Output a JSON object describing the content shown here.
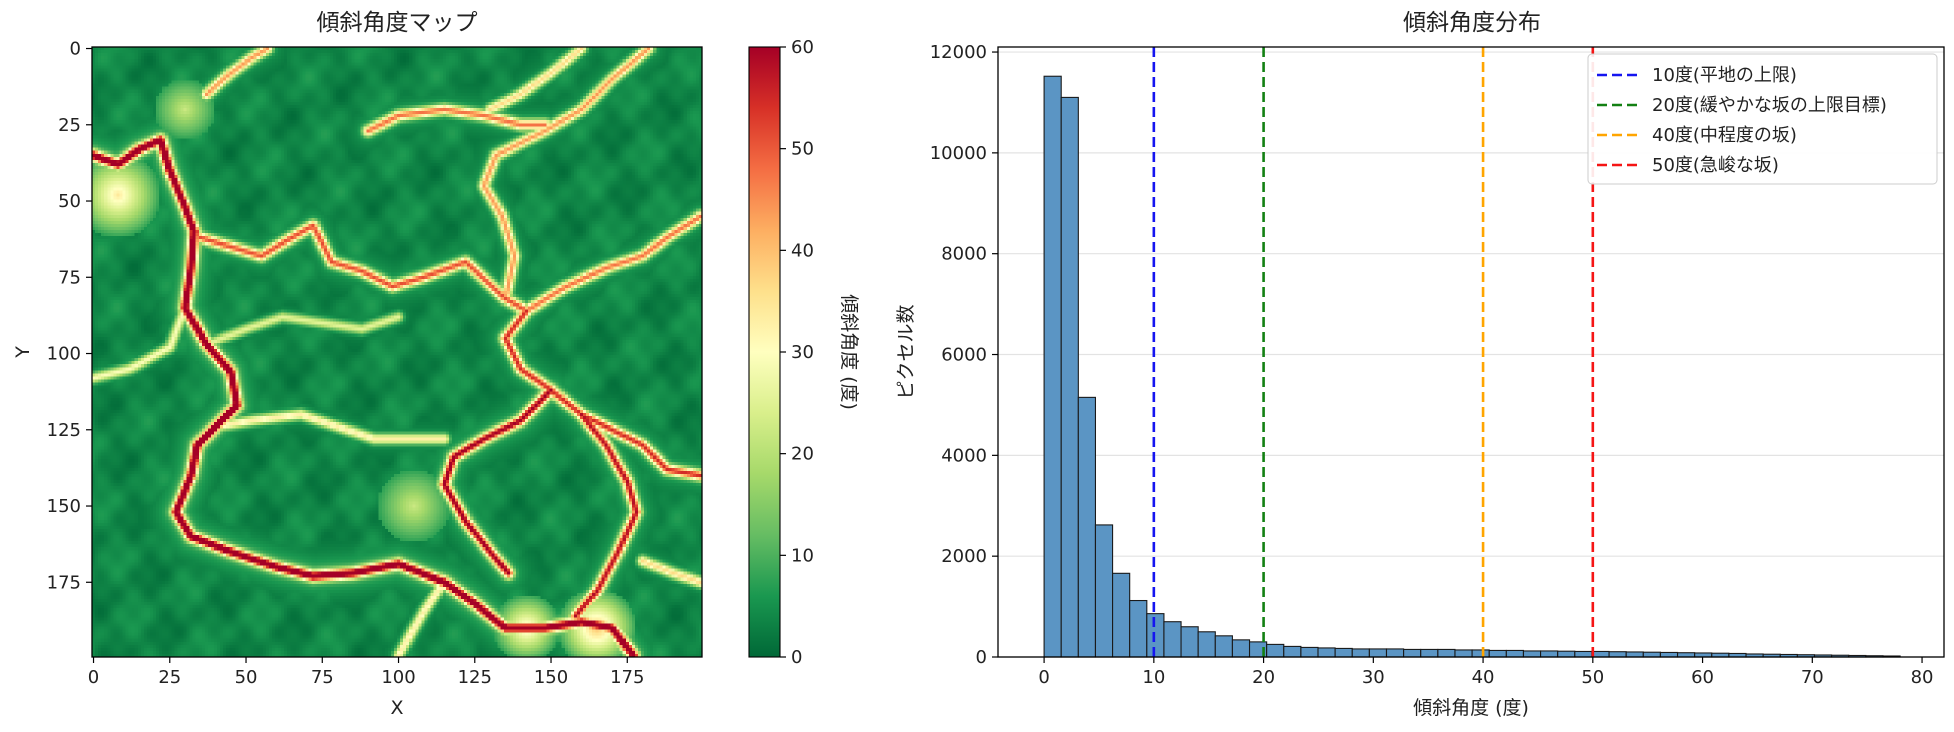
{
  "chart_data": [
    {
      "type": "heatmap",
      "title": "傾斜角度マップ",
      "xlabel": "X",
      "ylabel": "Y",
      "xlim": [
        0,
        199
      ],
      "ylim": [
        199,
        0
      ],
      "xticks": [
        "0",
        "25",
        "50",
        "75",
        "100",
        "125",
        "150",
        "175"
      ],
      "yticks": [
        "0",
        "25",
        "50",
        "75",
        "100",
        "125",
        "150",
        "175"
      ],
      "colormap": "RdYlGn_r",
      "colorbar": {
        "label": "傾斜角度 (度)",
        "range": [
          0,
          60
        ],
        "ticks": [
          "0",
          "10",
          "20",
          "30",
          "40",
          "50",
          "60"
        ]
      },
      "ridges": [
        {
          "points": [
            [
              0,
              35
            ],
            [
              8,
              38
            ],
            [
              15,
              33
            ],
            [
              22,
              30
            ],
            [
              25,
              40
            ],
            [
              30,
              52
            ],
            [
              33,
              60
            ],
            [
              32,
              72
            ],
            [
              30,
              85
            ],
            [
              37,
              97
            ],
            [
              45,
              106
            ],
            [
              47,
              117
            ],
            [
              40,
              124
            ],
            [
              34,
              130
            ],
            [
              32,
              140
            ],
            [
              27,
              152
            ],
            [
              32,
              160
            ],
            [
              45,
              165
            ],
            [
              60,
              170
            ],
            [
              72,
              173
            ],
            [
              85,
              172
            ],
            [
              100,
              169
            ],
            [
              115,
              175
            ],
            [
              125,
              182
            ],
            [
              135,
              190
            ],
            [
              148,
              190
            ],
            [
              160,
              188
            ],
            [
              170,
              190
            ],
            [
              177,
              199
            ]
          ],
          "intensity": 1.0
        },
        {
          "points": [
            [
              35,
              62
            ],
            [
              45,
              65
            ],
            [
              55,
              68
            ],
            [
              65,
              62
            ],
            [
              72,
              58
            ],
            [
              78,
              70
            ],
            [
              88,
              73
            ],
            [
              98,
              78
            ],
            [
              108,
              75
            ],
            [
              122,
              70
            ],
            [
              135,
              82
            ],
            [
              142,
              86
            ]
          ],
          "intensity": 0.7
        },
        {
          "points": [
            [
              142,
              86
            ],
            [
              155,
              78
            ],
            [
              168,
              72
            ],
            [
              180,
              68
            ],
            [
              188,
              62
            ],
            [
              199,
              55
            ]
          ],
          "intensity": 0.65
        },
        {
          "points": [
            [
              142,
              86
            ],
            [
              135,
              95
            ],
            [
              140,
              105
            ],
            [
              150,
              112
            ],
            [
              160,
              120
            ],
            [
              170,
              125
            ],
            [
              180,
              130
            ],
            [
              188,
              138
            ],
            [
              199,
              140
            ]
          ],
          "intensity": 0.75
        },
        {
          "points": [
            [
              150,
              112
            ],
            [
              140,
              122
            ],
            [
              128,
              128
            ],
            [
              118,
              134
            ],
            [
              115,
              143
            ],
            [
              122,
              155
            ],
            [
              130,
              165
            ],
            [
              136,
              172
            ]
          ],
          "intensity": 0.85
        },
        {
          "points": [
            [
              160,
              120
            ],
            [
              168,
              130
            ],
            [
              175,
              142
            ],
            [
              178,
              152
            ],
            [
              172,
              165
            ],
            [
              165,
              178
            ],
            [
              158,
              186
            ]
          ],
          "intensity": 0.8
        },
        {
          "points": [
            [
              40,
              124
            ],
            [
              52,
              122
            ],
            [
              68,
              120
            ],
            [
              80,
              124
            ],
            [
              92,
              128
            ],
            [
              102,
              128
            ],
            [
              115,
              128
            ]
          ],
          "intensity": 0.45
        },
        {
          "points": [
            [
              37,
              97
            ],
            [
              50,
              92
            ],
            [
              62,
              88
            ],
            [
              75,
              90
            ],
            [
              88,
              92
            ],
            [
              100,
              88
            ]
          ],
          "intensity": 0.35
        },
        {
          "points": [
            [
              37,
              15
            ],
            [
              45,
              8
            ],
            [
              52,
              3
            ],
            [
              57,
              0
            ]
          ],
          "intensity": 0.6
        },
        {
          "points": [
            [
              90,
              27
            ],
            [
              100,
              22
            ],
            [
              115,
              20
            ],
            [
              128,
              22
            ],
            [
              140,
              25
            ],
            [
              148,
              25
            ]
          ],
          "intensity": 0.65
        },
        {
          "points": [
            [
              135,
              82
            ],
            [
              138,
              68
            ],
            [
              134,
              55
            ],
            [
              128,
              45
            ],
            [
              132,
              35
            ],
            [
              148,
              27
            ],
            [
              160,
              20
            ],
            [
              170,
              10
            ],
            [
              182,
              0
            ]
          ],
          "intensity": 0.6
        },
        {
          "points": [
            [
              160,
              0
            ],
            [
              150,
              8
            ],
            [
              140,
              15
            ],
            [
              130,
              20
            ]
          ],
          "intensity": 0.5
        },
        {
          "points": [
            [
              0,
              108
            ],
            [
              12,
              105
            ],
            [
              25,
              98
            ],
            [
              30,
              85
            ]
          ],
          "intensity": 0.4
        },
        {
          "points": [
            [
              115,
              175
            ],
            [
              108,
              185
            ],
            [
              100,
              199
            ]
          ],
          "intensity": 0.45
        },
        {
          "points": [
            [
              180,
              168
            ],
            [
              190,
              172
            ],
            [
              199,
              175
            ]
          ],
          "intensity": 0.5
        }
      ],
      "hot_zones": [
        {
          "center": [
            8,
            48
          ],
          "radius": 14,
          "intensity": 0.45
        },
        {
          "center": [
            165,
            190
          ],
          "radius": 13,
          "intensity": 0.55
        },
        {
          "center": [
            142,
            190
          ],
          "radius": 11,
          "intensity": 0.45
        },
        {
          "center": [
            30,
            20
          ],
          "radius": 10,
          "intensity": 0.25
        },
        {
          "center": [
            105,
            150
          ],
          "radius": 12,
          "intensity": 0.25
        }
      ]
    },
    {
      "type": "bar",
      "title": "傾斜角度分布",
      "xlabel": "傾斜角度 (度)",
      "ylabel": "ピクセル数",
      "xlim": [
        -4.2,
        82
      ],
      "ylim": [
        0,
        12100
      ],
      "xticks": [
        "0",
        "10",
        "20",
        "30",
        "40",
        "50",
        "60",
        "70",
        "80"
      ],
      "yticks": [
        "0",
        "2000",
        "4000",
        "6000",
        "8000",
        "10000",
        "12000"
      ],
      "grid": "y",
      "legend_position": "top-right",
      "bin_edges_start": 0,
      "bin_width": 1.56,
      "values": [
        11520,
        11100,
        5150,
        2620,
        1660,
        1120,
        860,
        700,
        600,
        500,
        420,
        340,
        300,
        250,
        210,
        190,
        180,
        170,
        160,
        160,
        160,
        150,
        150,
        150,
        140,
        140,
        130,
        130,
        120,
        120,
        115,
        110,
        110,
        105,
        100,
        95,
        90,
        85,
        80,
        75,
        70,
        60,
        55,
        50,
        45,
        40,
        35,
        30,
        25,
        20
      ],
      "bar_color": "#5b95c4",
      "reference_lines": [
        {
          "x": 10,
          "label": "10度(平地の上限)",
          "color": "#1515f0"
        },
        {
          "x": 20,
          "label": "20度(緩やかな坂の上限目標)",
          "color": "#138013"
        },
        {
          "x": 40,
          "label": "40度(中程度の坂)",
          "color": "#ffa500"
        },
        {
          "x": 50,
          "label": "50度(急峻な坂)",
          "color": "#f51515"
        }
      ]
    }
  ]
}
